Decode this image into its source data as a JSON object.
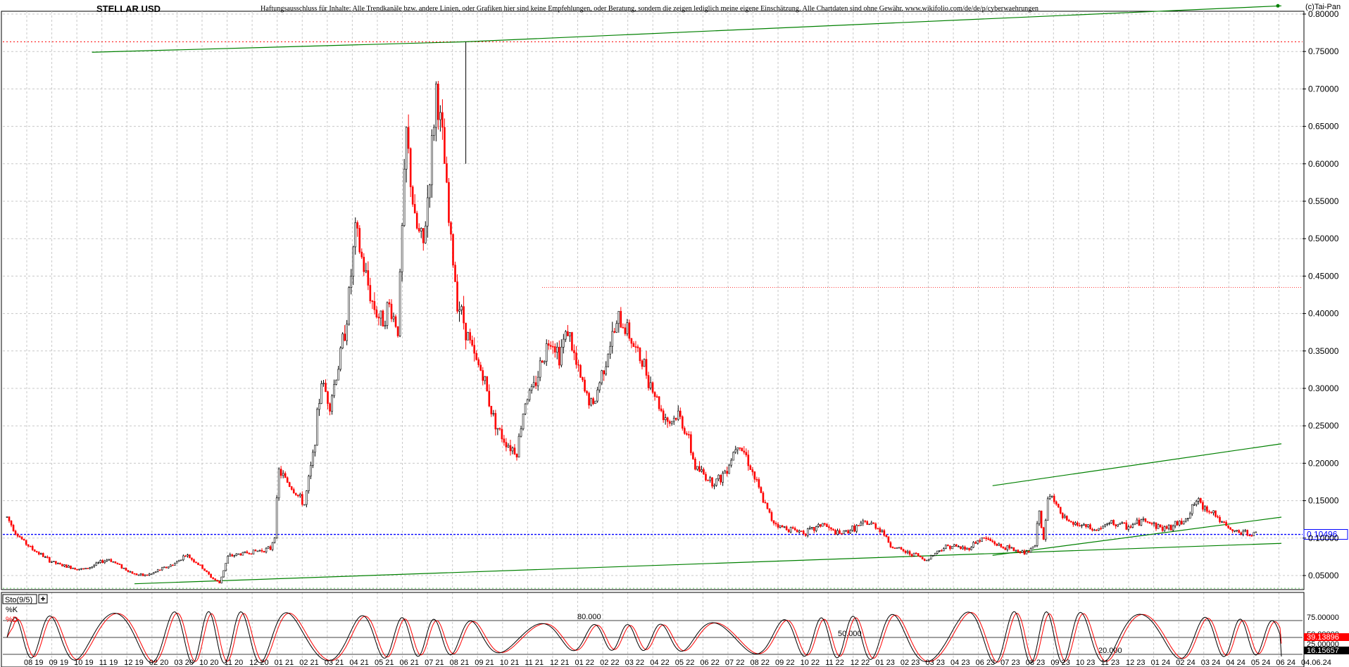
{
  "header": {
    "title": "STELLAR USD",
    "disclaimer": "Haftungsausschluss für Inhalte: Alle Trendkanäle bzw. andere Linien, oder Grafiken hier sind keine Empfehlungen, oder Beratung, sondern die zeigen lediglich meine eigene Einschätzung. Alle Chartdaten sind ohne Gewähr.  www.wikifolio.com/de/de/p/cyberwaehrungen",
    "copyright": "(c)Tai-Pan"
  },
  "colors": {
    "up_candle": "#000000",
    "down_candle": "#ff0000",
    "trendline": "#008000",
    "current_price_line": "#0000ff",
    "resistance_line": "#ff0000",
    "stoch_k": "#000000",
    "stoch_d": "#ff0000"
  },
  "chart_data": [
    {
      "type": "line",
      "title": "STELLAR USD",
      "yscale": "linear",
      "ylim": [
        0.03,
        0.8
      ],
      "yticks": [
        "0.80000",
        "0.75000",
        "0.70000",
        "0.65000",
        "0.60000",
        "0.55000",
        "0.50000",
        "0.45000",
        "0.40000",
        "0.35000",
        "0.30000",
        "0.25000",
        "0.20000",
        "0.15000",
        "0.10000",
        "0.05000"
      ],
      "ytick_values": [
        0.8,
        0.75,
        0.7,
        0.65,
        0.6,
        0.55,
        0.5,
        0.45,
        0.4,
        0.35,
        0.3,
        0.25,
        0.2,
        0.15,
        0.1,
        0.05
      ],
      "last_price_label": "0.10496",
      "last_price": 0.10496,
      "resistance_level": 0.763,
      "secondary_resistance": 0.435,
      "grid": true,
      "xticks": [
        "08 19",
        "09 19",
        "10 19",
        "11 19",
        "12 19",
        "02 20",
        "03 20",
        "10 20",
        "11 20",
        "12 20",
        "01 21",
        "02 21",
        "03 21",
        "04 21",
        "05 21",
        "06 21",
        "07 21",
        "08 21",
        "09 21",
        "10 21",
        "11 21",
        "12 21",
        "01 22",
        "02 22",
        "03 22",
        "04 22",
        "05 22",
        "06 22",
        "07 22",
        "08 22",
        "09 22",
        "10 22",
        "11 22",
        "12 22",
        "01 23",
        "02 23",
        "03 23",
        "04 23",
        "06 23",
        "07 23",
        "08 23",
        "09 23",
        "10 23",
        "11 23",
        "12 23",
        "01 24",
        "02 24",
        "03 24",
        "04 24",
        "05 24",
        "06 24",
        "04.06.24"
      ],
      "series": [
        {
          "points": [
            [
              0,
              0.128
            ],
            [
              2,
              0.108
            ],
            [
              4,
              0.095
            ],
            [
              6,
              0.085
            ],
            [
              8,
              0.078
            ],
            [
              10,
              0.07
            ],
            [
              12,
              0.065
            ],
            [
              14,
              0.062
            ],
            [
              16,
              0.06
            ],
            [
              18,
              0.058
            ],
            [
              20,
              0.062
            ],
            [
              22,
              0.068
            ],
            [
              24,
              0.072
            ],
            [
              26,
              0.065
            ],
            [
              28,
              0.058
            ],
            [
              30,
              0.052
            ],
            [
              32,
              0.05
            ],
            [
              34,
              0.052
            ],
            [
              36,
              0.058
            ],
            [
              38,
              0.062
            ],
            [
              40,
              0.068
            ],
            [
              42,
              0.078
            ],
            [
              44,
              0.07
            ],
            [
              46,
              0.06
            ],
            [
              48,
              0.048
            ],
            [
              50,
              0.04
            ],
            [
              52,
              0.075
            ],
            [
              54,
              0.078
            ],
            [
              56,
              0.08
            ],
            [
              58,
              0.082
            ],
            [
              60,
              0.084
            ],
            [
              62,
              0.086
            ],
            [
              63,
              0.105
            ],
            [
              64,
              0.19
            ],
            [
              66,
              0.175
            ],
            [
              68,
              0.16
            ],
            [
              70,
              0.145
            ],
            [
              72,
              0.21
            ],
            [
              74,
              0.31
            ],
            [
              76,
              0.28
            ],
            [
              78,
              0.33
            ],
            [
              80,
              0.395
            ],
            [
              82,
              0.51
            ],
            [
              84,
              0.46
            ],
            [
              86,
              0.415
            ],
            [
              88,
              0.39
            ],
            [
              90,
              0.41
            ],
            [
              92,
              0.38
            ],
            [
              94,
              0.64
            ],
            [
              96,
              0.52
            ],
            [
              98,
              0.49
            ],
            [
              100,
              0.62
            ],
            [
              101,
              0.7
            ],
            [
              102,
              0.655
            ],
            [
              103,
              0.6
            ],
            [
              104,
              0.52
            ],
            [
              106,
              0.42
            ],
            [
              108,
              0.38
            ],
            [
              110,
              0.34
            ],
            [
              112,
              0.32
            ],
            [
              114,
              0.27
            ],
            [
              116,
              0.24
            ],
            [
              118,
              0.225
            ],
            [
              120,
              0.215
            ],
            [
              122,
              0.285
            ],
            [
              124,
              0.3
            ],
            [
              126,
              0.34
            ],
            [
              128,
              0.37
            ],
            [
              130,
              0.345
            ],
            [
              132,
              0.38
            ],
            [
              134,
              0.33
            ],
            [
              136,
              0.295
            ],
            [
              138,
              0.275
            ],
            [
              140,
              0.32
            ],
            [
              142,
              0.36
            ],
            [
              144,
              0.39
            ],
            [
              146,
              0.38
            ],
            [
              148,
              0.35
            ],
            [
              150,
              0.33
            ],
            [
              152,
              0.3
            ],
            [
              154,
              0.27
            ],
            [
              156,
              0.255
            ],
            [
              158,
              0.265
            ],
            [
              160,
              0.24
            ],
            [
              162,
              0.195
            ],
            [
              164,
              0.185
            ],
            [
              166,
              0.175
            ],
            [
              168,
              0.18
            ],
            [
              170,
              0.2
            ],
            [
              172,
              0.23
            ],
            [
              174,
              0.21
            ],
            [
              176,
              0.18
            ],
            [
              178,
              0.15
            ],
            [
              180,
              0.125
            ],
            [
              182,
              0.115
            ],
            [
              184,
              0.113
            ],
            [
              186,
              0.11
            ],
            [
              188,
              0.108
            ],
            [
              190,
              0.112
            ],
            [
              192,
              0.12
            ],
            [
              194,
              0.11
            ],
            [
              196,
              0.105
            ],
            [
              198,
              0.11
            ],
            [
              200,
              0.115
            ],
            [
              202,
              0.12
            ],
            [
              204,
              0.118
            ],
            [
              206,
              0.11
            ],
            [
              208,
              0.09
            ],
            [
              210,
              0.085
            ],
            [
              212,
              0.08
            ],
            [
              214,
              0.078
            ],
            [
              216,
              0.07
            ],
            [
              218,
              0.078
            ],
            [
              220,
              0.086
            ],
            [
              222,
              0.09
            ],
            [
              224,
              0.088
            ],
            [
              226,
              0.085
            ],
            [
              228,
              0.095
            ],
            [
              230,
              0.1
            ],
            [
              232,
              0.095
            ],
            [
              234,
              0.088
            ],
            [
              236,
              0.086
            ],
            [
              238,
              0.083
            ],
            [
              240,
              0.08
            ],
            [
              242,
              0.09
            ],
            [
              243,
              0.14
            ],
            [
              244,
              0.095
            ],
            [
              245,
              0.15
            ],
            [
              246,
              0.16
            ],
            [
              248,
              0.13
            ],
            [
              250,
              0.12
            ],
            [
              252,
              0.118
            ],
            [
              254,
              0.115
            ],
            [
              256,
              0.11
            ],
            [
              258,
              0.115
            ],
            [
              260,
              0.12
            ],
            [
              262,
              0.118
            ],
            [
              264,
              0.115
            ],
            [
              266,
              0.12
            ],
            [
              268,
              0.125
            ],
            [
              270,
              0.118
            ],
            [
              272,
              0.113
            ],
            [
              274,
              0.115
            ],
            [
              276,
              0.12
            ],
            [
              278,
              0.13
            ],
            [
              280,
              0.15
            ],
            [
              282,
              0.14
            ],
            [
              284,
              0.135
            ],
            [
              286,
              0.12
            ],
            [
              288,
              0.11
            ],
            [
              290,
              0.108
            ],
            [
              292,
              0.106
            ],
            [
              294,
              0.105
            ]
          ]
        }
      ],
      "trendlines": [
        {
          "from": [
            20,
            0.749
          ],
          "to": [
            108,
            0.763
          ]
        },
        {
          "from": [
            108,
            0.763
          ],
          "to": [
            300,
            0.811
          ]
        },
        {
          "from": [
            30,
            0.039
          ],
          "to": [
            300,
            0.093
          ]
        },
        {
          "from": [
            232,
            0.17
          ],
          "to": [
            300,
            0.226
          ]
        },
        {
          "from": [
            232,
            0.077
          ],
          "to": [
            300,
            0.128
          ]
        }
      ]
    },
    {
      "type": "line",
      "title": "Sto(9/5)",
      "ylim": [
        0,
        100
      ],
      "series_labels": [
        "%K",
        "%D"
      ],
      "levels": [
        "80.000",
        "50.000",
        "20.000"
      ],
      "level_values": [
        80,
        50,
        20
      ],
      "right_labels": [
        "75.00000",
        "50.00000",
        "39.13896",
        "25.00000",
        "16.15657"
      ],
      "k_last": 16.15657,
      "d_last": 39.13896
    }
  ]
}
